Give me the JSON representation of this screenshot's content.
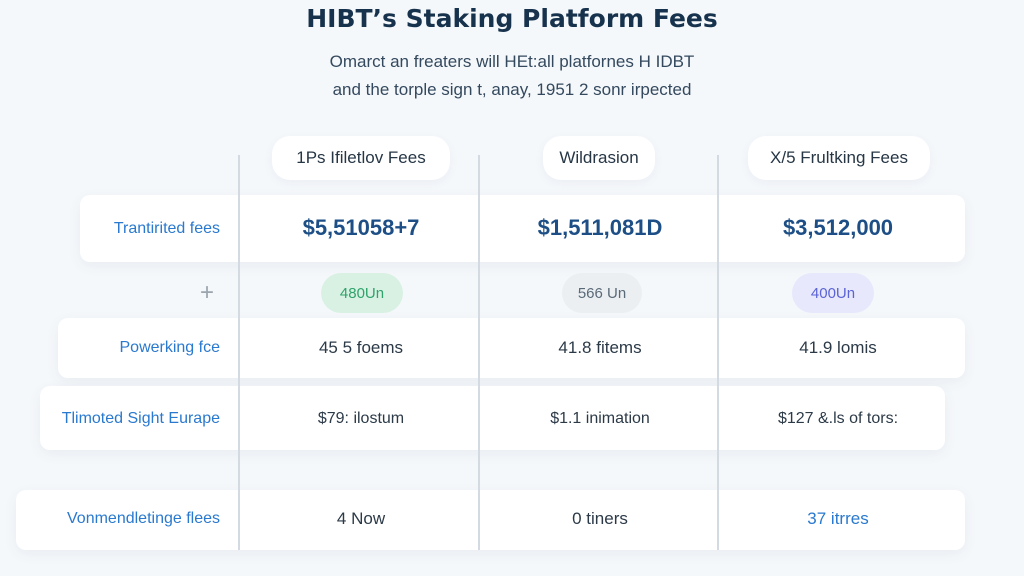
{
  "header": {
    "title": "HIBT’s Staking Platform Fees",
    "subtitle_line1": "Omarct an freaters will HEt:all platfornes H IDBT",
    "subtitle_line2": "and the torple sign t, anay, 1951 2 sonr irpected"
  },
  "columns": [
    "1Ps Ifiletlov Fees",
    "Wildrasion",
    "X/5 Frultking Fees"
  ],
  "rows": [
    {
      "label": "Trantirited fees",
      "values": [
        "$5,51058+7",
        "$1,511,081D",
        "$3,512,000"
      ]
    },
    {
      "label": "+",
      "badges": [
        {
          "text": "480Un",
          "color": "#2fa36b",
          "bg": "#d9f1e3"
        },
        {
          "text": "566 Un",
          "color": "#5a6a78",
          "bg": "#eceff2"
        },
        {
          "text": "400Un",
          "color": "#5b63d6",
          "bg": "#e7e8fb"
        }
      ]
    },
    {
      "label": "Powerking fce",
      "values": [
        "45 5 foems",
        "41.8 fitems",
        "41.9 lomis"
      ]
    },
    {
      "label": "Tlimoted Sight Eurape",
      "values": [
        "$79: ilostum",
        "$1.1 inimation",
        "$127 &.ls of tors:"
      ]
    },
    {
      "label": "Vonmendletinge flees",
      "values": [
        "4 Now",
        "0 tiners",
        "37 itrres"
      ]
    }
  ],
  "colors": {
    "accent": "#2979cf",
    "title": "#17324d",
    "value": "#1d4f86"
  }
}
